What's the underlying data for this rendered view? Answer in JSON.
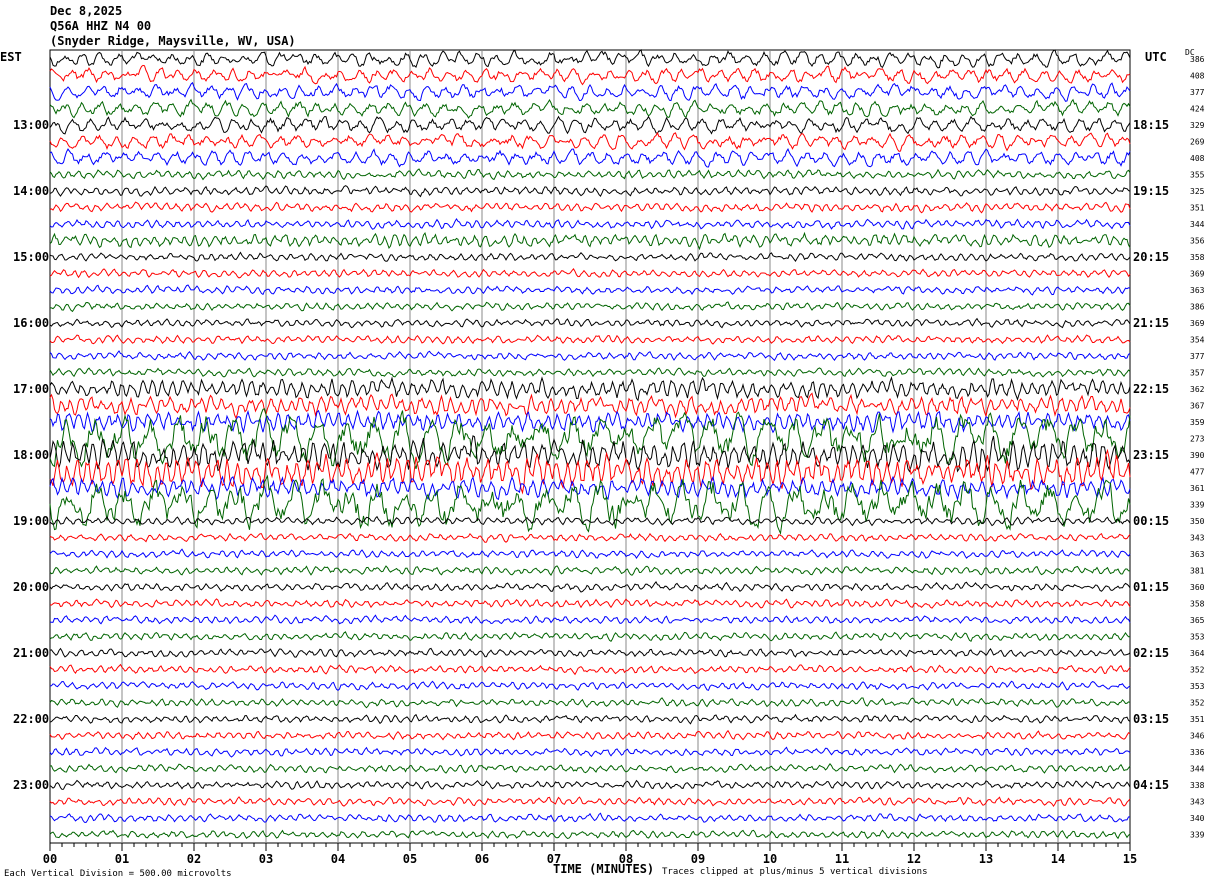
{
  "header": {
    "date": "Dec 8,2025",
    "station": "Q56A HHZ N4 00",
    "location": "(Snyder Ridge, Maysville, WV, USA)"
  },
  "left_axis_label": "EST",
  "right_axis_label": "UTC",
  "dc_label": "DC",
  "footer": {
    "scale_note": "Each Vertical Division =  500.00 microvolts",
    "clip_note": "Traces clipped at plus/minus 5 vertical divisions"
  },
  "chart_data": {
    "type": "line",
    "title": "",
    "xlabel": "TIME (MINUTES)",
    "xlim": [
      0,
      15
    ],
    "x_ticks": [
      "00",
      "01",
      "02",
      "03",
      "04",
      "05",
      "06",
      "07",
      "08",
      "09",
      "10",
      "11",
      "12",
      "13",
      "14",
      "15"
    ],
    "est_hour_labels": [
      "13:00",
      "14:00",
      "15:00",
      "16:00",
      "17:00",
      "18:00",
      "19:00",
      "20:00",
      "21:00",
      "22:00",
      "23:00"
    ],
    "utc_hour_labels": [
      "18:15",
      "19:15",
      "20:15",
      "21:15",
      "22:15",
      "23:15",
      "00:15",
      "01:15",
      "02:15",
      "03:15",
      "04:15"
    ],
    "trace_colors": [
      "#000000",
      "#ff0000",
      "#0000ff",
      "#006400"
    ],
    "dc_offsets": [
      386,
      408,
      377,
      424,
      329,
      269,
      408,
      355,
      325,
      351,
      344,
      356,
      358,
      369,
      363,
      386,
      369,
      354,
      377,
      357,
      362,
      367,
      359,
      273,
      390,
      477,
      361,
      339,
      350,
      343,
      363,
      381,
      360,
      358,
      365,
      353,
      364,
      352,
      353,
      352,
      351,
      346,
      336,
      344,
      338,
      343,
      340,
      339
    ],
    "minutes_per_line": 15,
    "grid": true
  }
}
